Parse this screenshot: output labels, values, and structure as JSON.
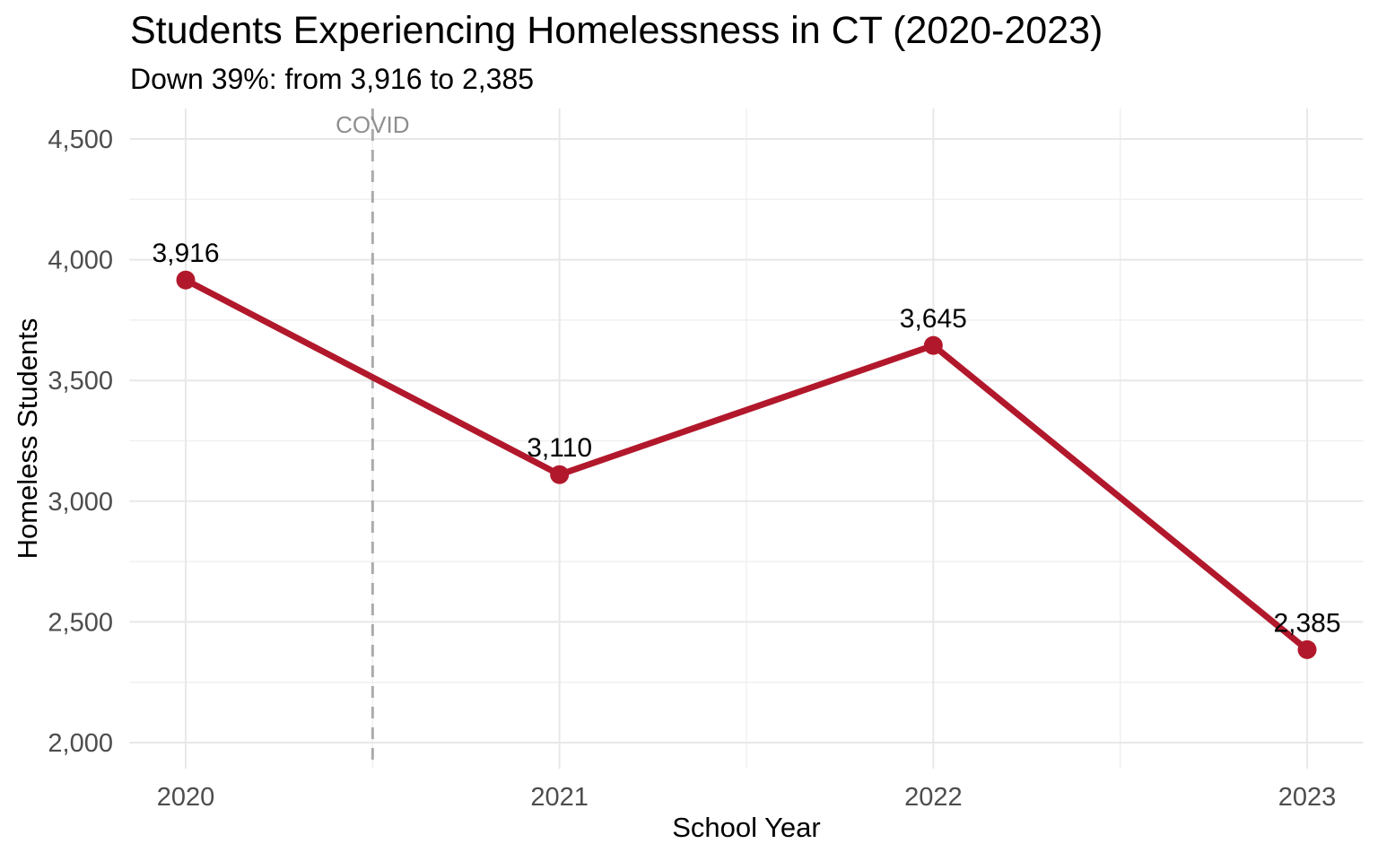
{
  "figure": {
    "title": "Students Experiencing Homelessness in CT (2020-2023)",
    "subtitle": "Down 39%: from 3,916 to 2,385"
  },
  "chart_data": {
    "type": "line",
    "x": [
      2020,
      2021,
      2022,
      2023
    ],
    "x_labels": [
      "2020",
      "2021",
      "2022",
      "2023"
    ],
    "series": [
      {
        "name": "Homeless Students",
        "values": [
          3916,
          3110,
          3645,
          2385
        ]
      }
    ],
    "point_labels": [
      "3,916",
      "3,110",
      "3,645",
      "2,385"
    ],
    "title": "Students Experiencing Homelessness in CT (2020-2023)",
    "subtitle": "Down 39%: from 3,916 to 2,385",
    "xlabel": "School Year",
    "ylabel": "Homeless Students",
    "ylim": [
      2000,
      4500
    ],
    "y_ticks": [
      {
        "value": 2000,
        "label": "2,000"
      },
      {
        "value": 2500,
        "label": "2,500"
      },
      {
        "value": 3000,
        "label": "3,000"
      },
      {
        "value": 3500,
        "label": "3,500"
      },
      {
        "value": 4000,
        "label": "4,000"
      },
      {
        "value": 4500,
        "label": "4,500"
      }
    ],
    "y_minor_ticks": [
      2250,
      2750,
      3250,
      3750,
      4250
    ],
    "x_minor_ticks": [
      2020.5,
      2021.5,
      2022.5
    ],
    "grid": "major+minor",
    "legend": "none",
    "annotation": {
      "text": "COVID",
      "x": 2020.5
    },
    "colors": {
      "line": "#B2182B",
      "point": "#B2182B",
      "grid_major": "#E8E8E8",
      "grid_minor": "#F0F0F0",
      "axis_text": "#4D4D4D",
      "annotation_text": "#8F8F8F",
      "annotation_line": "#ABABAB",
      "label_text": "#000000"
    }
  }
}
